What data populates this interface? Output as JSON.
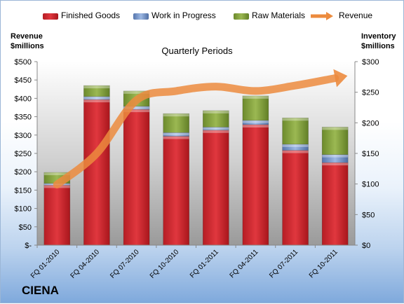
{
  "chart_data": {
    "type": "bar",
    "stacked": true,
    "title": "Quarterly Periods",
    "categories": [
      "FQ 01-2010",
      "FQ 04-2010",
      "FQ 07-2010",
      "FQ 10-2010",
      "FQ 01-2011",
      "FQ 04-2011",
      "FQ 07-2011",
      "FQ 10-2011"
    ],
    "series": [
      {
        "name": "Finished Goods",
        "axis": "inventory",
        "color": "#d0262e",
        "values": [
          98,
          238,
          222,
          178,
          188,
          197,
          155,
          135
        ]
      },
      {
        "name": "Work in Progress",
        "axis": "inventory",
        "color": "#6f90c8",
        "values": [
          3,
          5,
          5,
          6,
          5,
          7,
          10,
          13
        ]
      },
      {
        "name": "Raw Materials",
        "axis": "inventory",
        "color": "#7f9b3a",
        "values": [
          18,
          18,
          25,
          31,
          27,
          40,
          43,
          45
        ]
      },
      {
        "name": "Revenue",
        "axis": "revenue",
        "type": "line",
        "color": "#ec8b3e",
        "values": [
          165,
          250,
          395,
          420,
          432,
          420,
          435,
          455
        ]
      }
    ],
    "left_axis": {
      "label_line1": "Revenue",
      "label_line2": "$millions",
      "min": 0,
      "max": 500,
      "ticks": [
        "$-",
        "$50",
        "$100",
        "$150",
        "$200",
        "$250",
        "$300",
        "$350",
        "$400",
        "$450",
        "$500"
      ]
    },
    "right_axis": {
      "label_line1": "Inventory",
      "label_line2": "$millions",
      "min": 0,
      "max": 300,
      "ticks": [
        "$0",
        "$50",
        "$100",
        "$150",
        "$200",
        "$250",
        "$300"
      ]
    },
    "legend_position": "top",
    "grid": false,
    "plot_background": "gradient gray"
  },
  "brand": "CIENA"
}
